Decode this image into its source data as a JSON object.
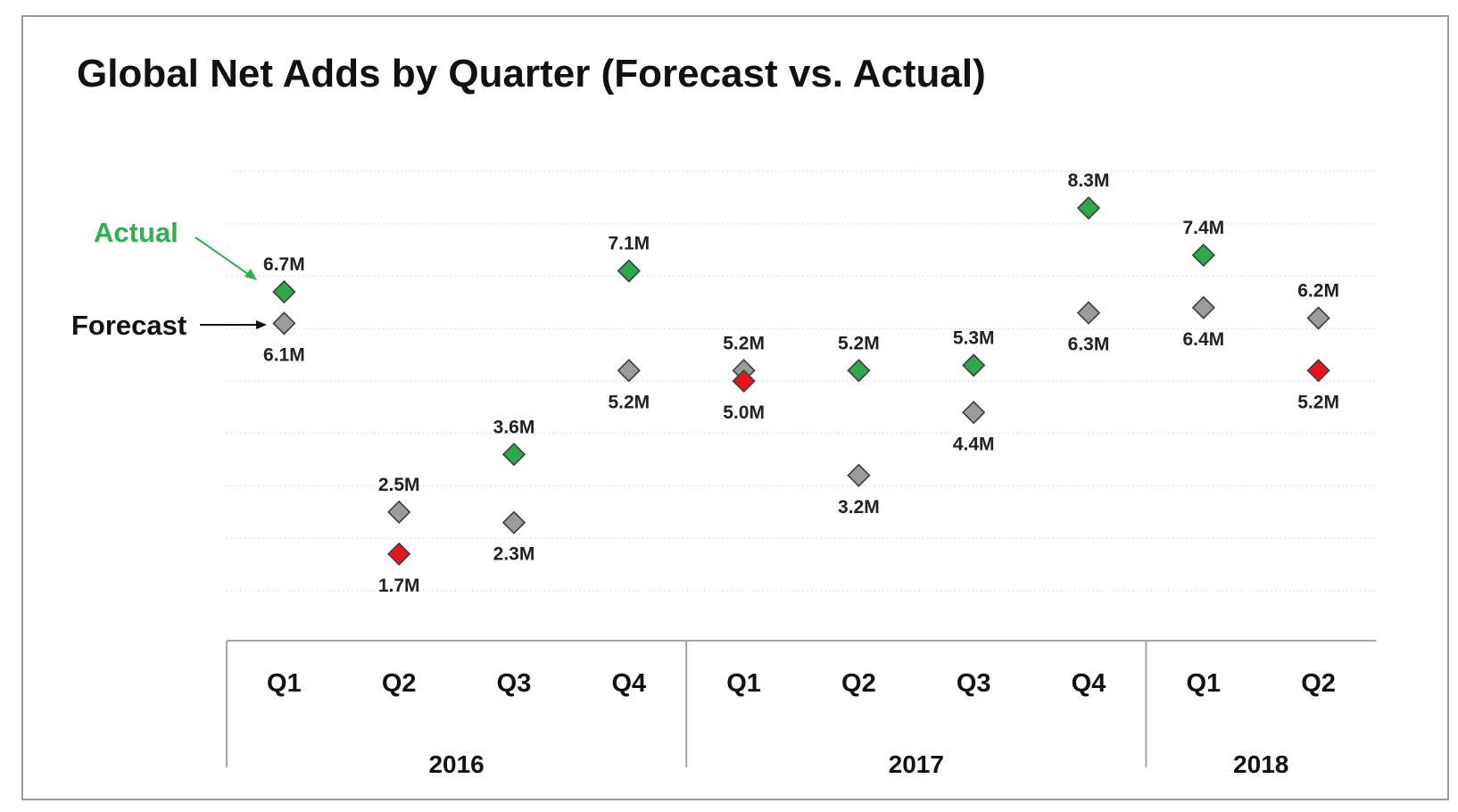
{
  "chart_data": {
    "type": "scatter",
    "title": "Global Net Adds by Quarter (Forecast vs. Actual)",
    "categories": [
      "Q1",
      "Q2",
      "Q3",
      "Q4",
      "Q1",
      "Q2",
      "Q3",
      "Q4",
      "Q1",
      "Q2"
    ],
    "years": [
      {
        "label": "2016",
        "quarters": 4
      },
      {
        "label": "2017",
        "quarters": 4
      },
      {
        "label": "2018",
        "quarters": 2
      }
    ],
    "ylim": [
      1.0,
      9.0
    ],
    "grid": true,
    "series": [
      {
        "name": "Actual",
        "values": [
          6.7,
          1.7,
          3.6,
          7.1,
          5.0,
          5.2,
          5.3,
          8.3,
          7.4,
          5.2
        ],
        "labels": [
          "6.7M",
          "1.7M",
          "3.6M",
          "7.1M",
          "5.0M",
          "5.2M",
          "5.3M",
          "8.3M",
          "7.4M",
          "5.2M"
        ]
      },
      {
        "name": "Forecast",
        "values": [
          6.1,
          2.5,
          2.3,
          5.2,
          5.2,
          3.2,
          4.4,
          6.3,
          6.4,
          6.2
        ],
        "labels": [
          "6.1M",
          "2.5M",
          "2.3M",
          "5.2M",
          "5.2M",
          "3.2M",
          "4.4M",
          "6.3M",
          "6.4M",
          "6.2M"
        ]
      }
    ],
    "colors": {
      "beat": "#2ea84a",
      "miss": "#e8141c",
      "forecast": "#9b9b9b",
      "actual_legend": "#2db24f"
    },
    "legend": {
      "actual": "Actual",
      "forecast": "Forecast"
    }
  }
}
